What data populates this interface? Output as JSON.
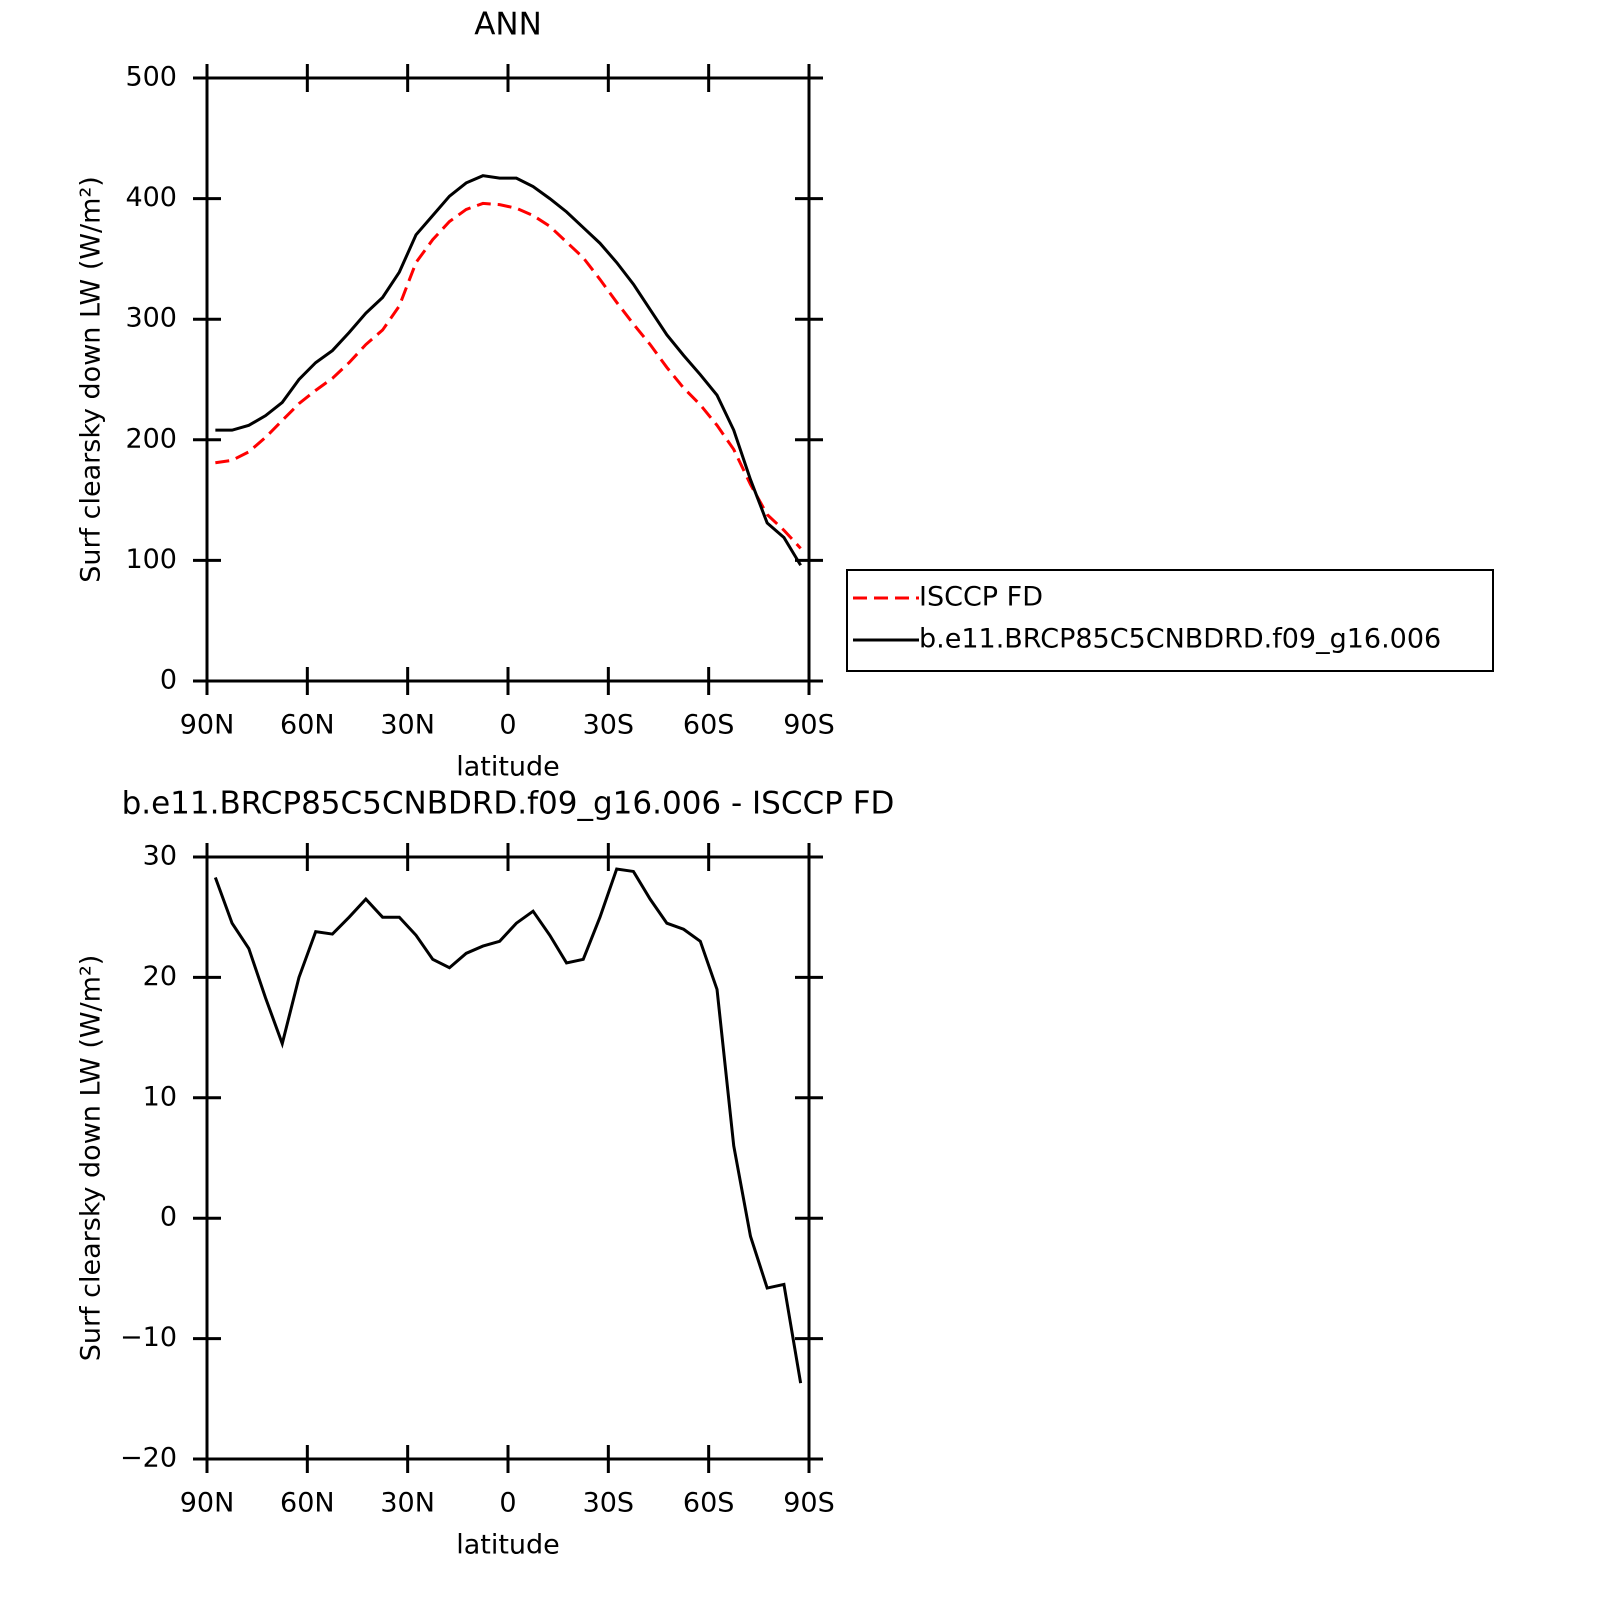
{
  "chart_data": [
    {
      "type": "line",
      "title": "ANN",
      "xlabel": "latitude",
      "ylabel": "Surf clearsky down LW (W/m²)",
      "x": [
        87.5,
        82.5,
        77.5,
        72.5,
        67.5,
        62.5,
        57.5,
        52.5,
        47.5,
        42.5,
        37.5,
        32.5,
        27.5,
        22.5,
        17.5,
        12.5,
        7.5,
        2.5,
        -2.5,
        -7.5,
        -12.5,
        -17.5,
        -22.5,
        -27.5,
        -32.5,
        -37.5,
        -42.5,
        -47.5,
        -52.5,
        -57.5,
        -62.5,
        -67.5,
        -72.5,
        -77.5,
        -82.5,
        -87.5
      ],
      "series": [
        {
          "name": "ISCCP FD",
          "color": "#ff0000",
          "dash": "dashed",
          "values": [
            181,
            183,
            190,
            202,
            216,
            230,
            241,
            251,
            264,
            279,
            291,
            311,
            347,
            366,
            381,
            391,
            396,
            395,
            392,
            386,
            377,
            364,
            351,
            333,
            314,
            296,
            279,
            260,
            243,
            229,
            212,
            192,
            163,
            138,
            125,
            110
          ]
        },
        {
          "name": "b.e11.BRCP85C5CNBDRD.f09_g16.006",
          "color": "#000000",
          "dash": "solid",
          "values": [
            208,
            208,
            212,
            220,
            231,
            250,
            264,
            274,
            289,
            305,
            318,
            339,
            370,
            386,
            402,
            413,
            419,
            417,
            417,
            410,
            400,
            389,
            376,
            363,
            347,
            329,
            308,
            287,
            270,
            254,
            237,
            208,
            167,
            131,
            119,
            96
          ]
        }
      ],
      "xlim": [
        90,
        -90
      ],
      "xticks": [
        {
          "value": 90,
          "label": "90N"
        },
        {
          "value": 60,
          "label": "60N"
        },
        {
          "value": 30,
          "label": "30N"
        },
        0,
        {
          "value": -30,
          "label": "30S"
        },
        {
          "value": -60,
          "label": "60S"
        },
        {
          "value": -90,
          "label": "90S"
        }
      ],
      "ylim": [
        0,
        500
      ],
      "yticks": [
        0,
        100,
        200,
        300,
        400,
        500
      ],
      "legend": "right"
    },
    {
      "type": "line",
      "title": "b.e11.BRCP85C5CNBDRD.f09_g16.006 - ISCCP FD",
      "xlabel": "latitude",
      "ylabel": "Surf clearsky down LW (W/m²)",
      "x": [
        87.5,
        82.5,
        77.5,
        72.5,
        67.5,
        62.5,
        57.5,
        52.5,
        47.5,
        42.5,
        37.5,
        32.5,
        27.5,
        22.5,
        17.5,
        12.5,
        7.5,
        2.5,
        -2.5,
        -7.5,
        -12.5,
        -17.5,
        -22.5,
        -27.5,
        -32.5,
        -37.5,
        -42.5,
        -47.5,
        -52.5,
        -57.5,
        -62.5,
        -67.5,
        -72.5,
        -77.5,
        -82.5,
        -87.5
      ],
      "series": [
        {
          "color": "#000000",
          "dash": "solid",
          "values": [
            28.3,
            24.5,
            22.4,
            18.3,
            14.5,
            20,
            23.8,
            23.6,
            25.0,
            26.5,
            25.0,
            25.0,
            23.5,
            21.5,
            20.8,
            22.0,
            22.6,
            23.0,
            24.5,
            25.5,
            23.5,
            21.2,
            21.5,
            25.0,
            29.0,
            28.8,
            26.5,
            24.5,
            24.0,
            23.0,
            19.0,
            6.0,
            -1.5,
            -5.8,
            -5.5,
            -13.7
          ]
        }
      ],
      "xlim": [
        90,
        -90
      ],
      "xticks": [
        {
          "value": 90,
          "label": "90N"
        },
        {
          "value": 60,
          "label": "60N"
        },
        {
          "value": 30,
          "label": "30N"
        },
        0,
        {
          "value": -30,
          "label": "30S"
        },
        {
          "value": -60,
          "label": "60S"
        },
        {
          "value": -90,
          "label": "90S"
        }
      ],
      "ylim": [
        -20,
        30
      ],
      "yticks": [
        {
          "value": -20,
          "label": "−20"
        },
        {
          "value": -10,
          "label": "−10"
        },
        0,
        10,
        20,
        30
      ]
    }
  ]
}
